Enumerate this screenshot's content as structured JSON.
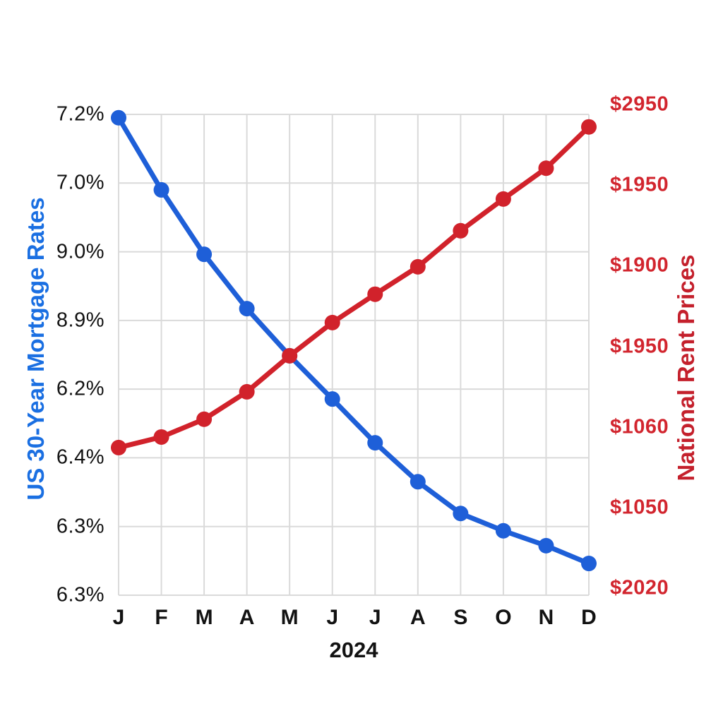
{
  "page": {
    "background": "#ffffff"
  },
  "chart_data": {
    "type": "line",
    "title": "",
    "x_categories": [
      "J",
      "F",
      "M",
      "A",
      "M",
      "J",
      "J",
      "A",
      "S",
      "O",
      "N",
      "D"
    ],
    "x_axis_label": "2024",
    "grid": true,
    "grid_color": "#dadada",
    "legend_position": "none",
    "left_axis": {
      "title": "US 30-Year Mortgage Rates",
      "title_color": "#1a6fe2",
      "tick_color": "#121212",
      "tick_labels": [
        "7.2%",
        "7.0%",
        "9.0%",
        "8.9%",
        "6.2%",
        "6.4%",
        "6.3%",
        "6.3%"
      ]
    },
    "right_axis": {
      "title": "National Rent Prices",
      "title_color": "#c4202c",
      "tick_color": "#d2252e",
      "tick_labels": [
        "$2950",
        "$1950",
        "$1900",
        "$1950",
        "$1060",
        "$1050",
        "$2020"
      ]
    },
    "series": [
      {
        "name": "US 30-Year Mortgage Rates",
        "axis": "left",
        "color": "#1e5fd8",
        "marker": "circle",
        "trend": "decreasing",
        "y_frac": [
          0.007,
          0.157,
          0.291,
          0.404,
          0.502,
          0.592,
          0.683,
          0.764,
          0.83,
          0.866,
          0.897,
          0.934
        ]
      },
      {
        "name": "National Rent Prices",
        "axis": "right",
        "color": "#d1222b",
        "marker": "circle",
        "trend": "increasing",
        "y_frac": [
          0.693,
          0.671,
          0.634,
          0.577,
          0.502,
          0.433,
          0.374,
          0.317,
          0.242,
          0.176,
          0.112,
          0.026
        ]
      }
    ]
  }
}
